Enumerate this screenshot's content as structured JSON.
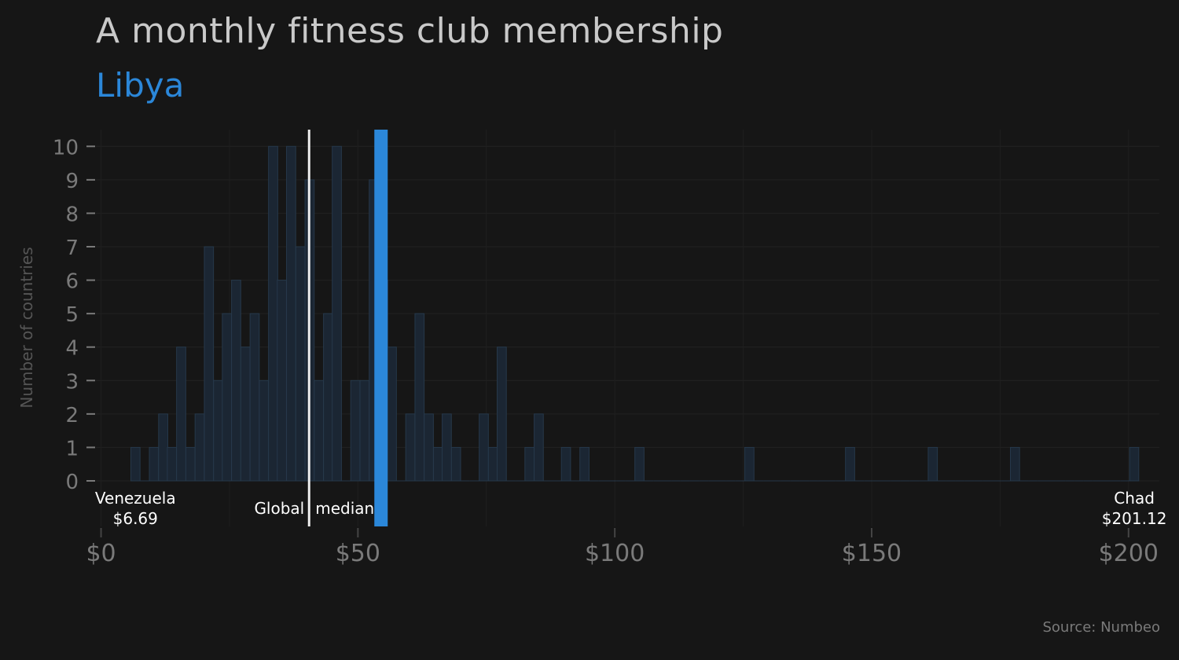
{
  "title": "A monthly fitness club membership",
  "subtitle": "Libya",
  "source": "Source: Numbeo",
  "colors": {
    "background": "#161616",
    "title": "#c9c9c9",
    "highlight": "#2b87d9",
    "bars": "#1b2633",
    "bar_stroke": "#26384a",
    "median_line": "#eeeeee",
    "axis_text": "#7a7a7a",
    "label_text": "#ffffff"
  },
  "chart_data": {
    "type": "bar",
    "title": "A monthly fitness club membership",
    "subtitle": "Libya",
    "ylabel": "Number of countries",
    "xlabel": "",
    "bin_width": 1.786,
    "x": [
      6.7,
      8.5,
      10.3,
      12.1,
      13.8,
      15.6,
      17.4,
      19.2,
      21.0,
      22.8,
      24.5,
      26.3,
      28.1,
      29.9,
      31.7,
      33.5,
      35.2,
      37.0,
      38.8,
      40.6,
      42.4,
      44.2,
      45.9,
      47.7,
      49.5,
      51.3,
      53.1,
      54.9,
      56.6,
      58.4,
      60.2,
      62.0,
      63.8,
      65.6,
      67.3,
      69.1,
      70.9,
      72.7,
      74.5,
      76.3,
      78.0,
      79.8,
      81.6,
      83.4,
      85.2,
      87.0,
      88.7,
      90.5,
      92.3,
      94.1,
      95.9,
      97.7,
      99.4,
      101.2,
      103.0,
      104.8,
      106.6,
      108.4,
      110.1,
      111.9,
      113.7,
      115.5,
      117.3,
      119.1,
      120.8,
      122.6,
      124.4,
      126.2,
      128.0,
      129.8,
      131.5,
      133.3,
      135.1,
      136.9,
      138.7,
      140.5,
      142.2,
      144.0,
      145.8,
      147.6,
      149.4,
      151.2,
      152.9,
      154.7,
      156.5,
      158.3,
      160.1,
      161.9,
      163.6,
      165.4,
      167.2,
      169.0,
      170.8,
      172.6,
      174.3,
      176.1,
      177.9,
      179.7,
      181.5,
      183.3,
      185.0,
      186.8,
      188.6,
      190.4,
      192.2,
      194.0,
      195.7,
      197.5,
      199.3,
      201.1
    ],
    "values": [
      1,
      0,
      1,
      2,
      1,
      4,
      1,
      2,
      7,
      3,
      5,
      6,
      4,
      5,
      3,
      10,
      6,
      10,
      7,
      9,
      3,
      5,
      10,
      0,
      3,
      3,
      9,
      6,
      4,
      0,
      2,
      5,
      2,
      1,
      2,
      1,
      0,
      0,
      2,
      1,
      4,
      0,
      0,
      1,
      2,
      0,
      0,
      1,
      0,
      1,
      0,
      0,
      0,
      0,
      0,
      1,
      0,
      0,
      0,
      0,
      0,
      0,
      0,
      0,
      0,
      0,
      0,
      1,
      0,
      0,
      0,
      0,
      0,
      0,
      0,
      0,
      0,
      0,
      1,
      0,
      0,
      0,
      0,
      0,
      0,
      0,
      0,
      1,
      0,
      0,
      0,
      0,
      0,
      0,
      0,
      0,
      1,
      0,
      0,
      0,
      0,
      0,
      0,
      0,
      0,
      0,
      0,
      0,
      0,
      1
    ],
    "xlim": [
      -1,
      206
    ],
    "ylim": [
      0,
      10.5
    ],
    "x_ticks": [
      0,
      50,
      100,
      150,
      200
    ],
    "x_tick_labels": [
      "$0",
      "$50",
      "$100",
      "$150",
      "$200"
    ],
    "y_ticks": [
      0,
      1,
      2,
      3,
      4,
      5,
      6,
      7,
      8,
      9,
      10
    ],
    "y_tick_labels": [
      "0",
      "1",
      "2",
      "3",
      "4",
      "5",
      "6",
      "7",
      "8",
      "9",
      "10"
    ],
    "grid": true,
    "highlight": {
      "name": "Libya",
      "value": 54.5
    },
    "median": {
      "value": 40.5,
      "label": "Global median"
    },
    "annotations": [
      {
        "x": 6.69,
        "lines": [
          "Venezuela",
          "$6.69"
        ]
      },
      {
        "x": 201.12,
        "lines": [
          "Chad",
          "$201.12"
        ]
      }
    ]
  }
}
